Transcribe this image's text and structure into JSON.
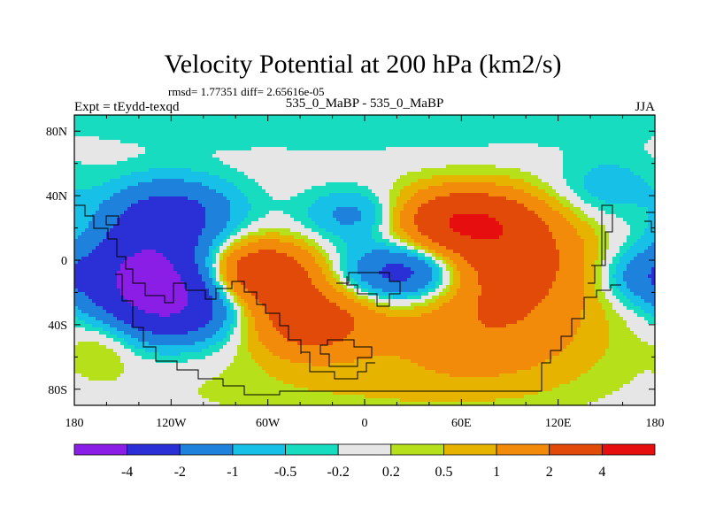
{
  "chart_data": {
    "type": "heatmap",
    "title": "Velocity Potential at 200 hPa (km2/s)",
    "stats": "rmsd= 1.77351  diff= 2.65616e-05",
    "left_label": "Expt = tEydd-texqd",
    "center_label": "535_0_MaBP - 535_0_MaBP",
    "right_label": "JJA",
    "x_axis": {
      "range": [
        -180,
        180
      ],
      "ticks": [
        -180,
        -120,
        -60,
        0,
        60,
        120,
        180
      ],
      "tick_labels": [
        "180",
        "120W",
        "60W",
        "0",
        "60E",
        "120E",
        "180"
      ]
    },
    "y_axis": {
      "range": [
        -90,
        90
      ],
      "ticks": [
        80,
        40,
        0,
        -40,
        -80
      ],
      "tick_labels": [
        "80N",
        "40N",
        "0",
        "40S",
        "80S"
      ]
    },
    "colorbar": {
      "levels": [
        "-4",
        "-2",
        "-1",
        "-0.5",
        "-0.2",
        "0.2",
        "0.5",
        "1",
        "2",
        "4"
      ],
      "colors": [
        "#8a1ee6",
        "#2a2fd6",
        "#1e82dc",
        "#16c0e6",
        "#18dcc0",
        "#e6e6e6",
        "#b6e01a",
        "#e6b400",
        "#f28a0a",
        "#e24a0a",
        "#e60e0e"
      ]
    },
    "field_centers": [
      {
        "lon": -135,
        "lat": -8,
        "value": -4.3,
        "sx": 28,
        "sy": 20
      },
      {
        "lon": -115,
        "lat": -30,
        "value": -2.6,
        "sx": 30,
        "sy": 15
      },
      {
        "lon": -120,
        "lat": 30,
        "value": -2.3,
        "sx": 28,
        "sy": 15
      },
      {
        "lon": 25,
        "lat": -8,
        "value": -3.0,
        "sx": 26,
        "sy": 13
      },
      {
        "lon": -5,
        "lat": 28,
        "value": -1.4,
        "sx": 22,
        "sy": 11
      },
      {
        "lon": 150,
        "lat": 45,
        "value": -0.8,
        "sx": 22,
        "sy": 14
      },
      {
        "lon": 170,
        "lat": -10,
        "value": -1.2,
        "sx": 18,
        "sy": 12
      },
      {
        "lon": -65,
        "lat": -8,
        "value": 3.6,
        "sx": 24,
        "sy": 14
      },
      {
        "lon": -35,
        "lat": -38,
        "value": 2.8,
        "sx": 28,
        "sy": 16
      },
      {
        "lon": 60,
        "lat": 25,
        "value": 3.4,
        "sx": 30,
        "sy": 14
      },
      {
        "lon": 90,
        "lat": 0,
        "value": 2.7,
        "sx": 34,
        "sy": 22
      },
      {
        "lon": 75,
        "lat": -45,
        "value": 1.6,
        "sx": 50,
        "sy": 22
      },
      {
        "lon": 0,
        "lat": -80,
        "value": 0.4,
        "sx": 90,
        "sy": 14
      },
      {
        "lon": -160,
        "lat": -50,
        "value": 0.6,
        "sx": 14,
        "sy": 14
      },
      {
        "lon": 0,
        "lat": 85,
        "value": -0.5,
        "sx": 140,
        "sy": 12
      }
    ],
    "contour_breaks": [
      -4,
      -2,
      -1,
      -0.5,
      -0.2,
      0.2,
      0.5,
      1,
      2,
      4
    ]
  }
}
